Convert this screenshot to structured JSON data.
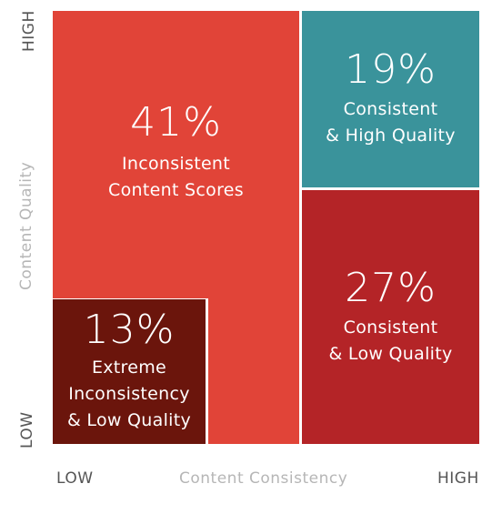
{
  "chart_data": {
    "type": "treemap",
    "xlabel": "Content Consistency",
    "ylabel": "Content Quality",
    "x_ticks": [
      "LOW",
      "HIGH"
    ],
    "y_ticks": [
      "LOW",
      "HIGH"
    ],
    "segments": [
      {
        "percent": "41%",
        "value": 41,
        "label": "Inconsistent\nContent Scores",
        "color": "#e14438"
      },
      {
        "percent": "19%",
        "value": 19,
        "label": "Consistent\n& High Quality",
        "color": "#3a939b"
      },
      {
        "percent": "27%",
        "value": 27,
        "label": "Consistent\n& Low Quality",
        "color": "#b42427"
      },
      {
        "percent": "13%",
        "value": 13,
        "label": "Extreme\nInconsistency\n& Low Quality",
        "color": "#6b150c"
      }
    ]
  }
}
